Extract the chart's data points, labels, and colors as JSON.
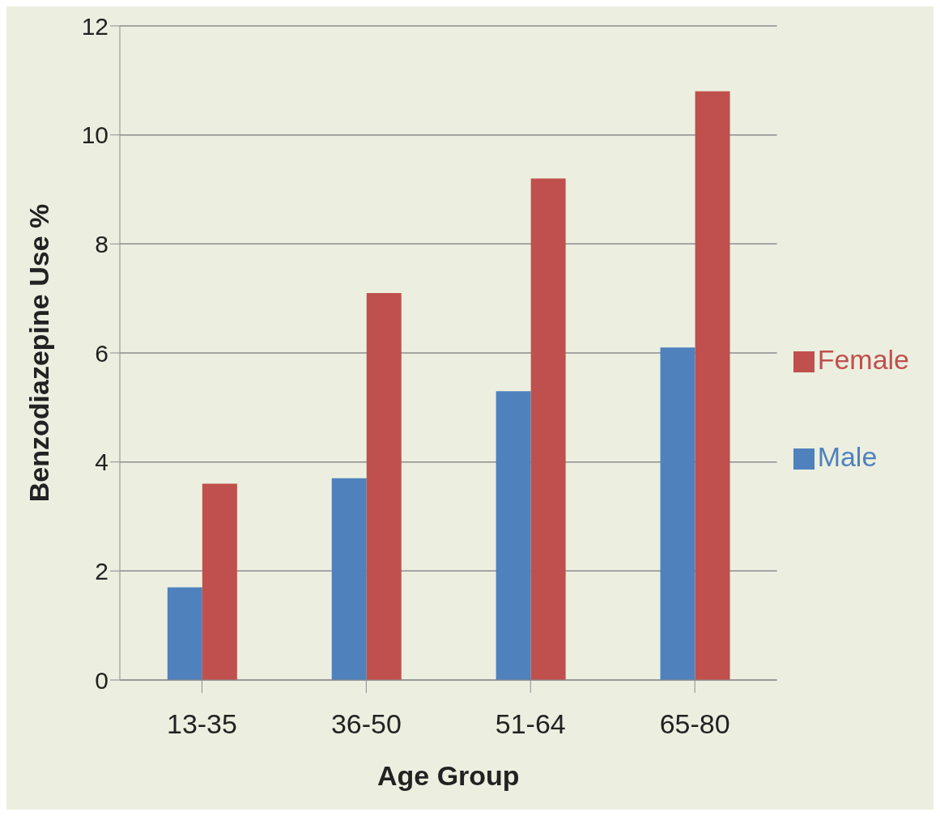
{
  "chart_data": {
    "type": "bar",
    "xlabel": "Age Group",
    "ylabel": "Benzodiazepine Use %",
    "categories": [
      "13-35",
      "36-50",
      "51-64",
      "65-80"
    ],
    "series": [
      {
        "name": "Male",
        "color": "#4f81bd",
        "values": [
          1.7,
          3.7,
          5.3,
          6.1
        ]
      },
      {
        "name": "Female",
        "color": "#c0504d",
        "values": [
          3.6,
          7.1,
          9.2,
          10.8
        ]
      }
    ],
    "ylim": [
      0,
      12
    ],
    "yticks": [
      0,
      2,
      4,
      6,
      8,
      10,
      12
    ],
    "grid": "y",
    "legend": "right"
  }
}
